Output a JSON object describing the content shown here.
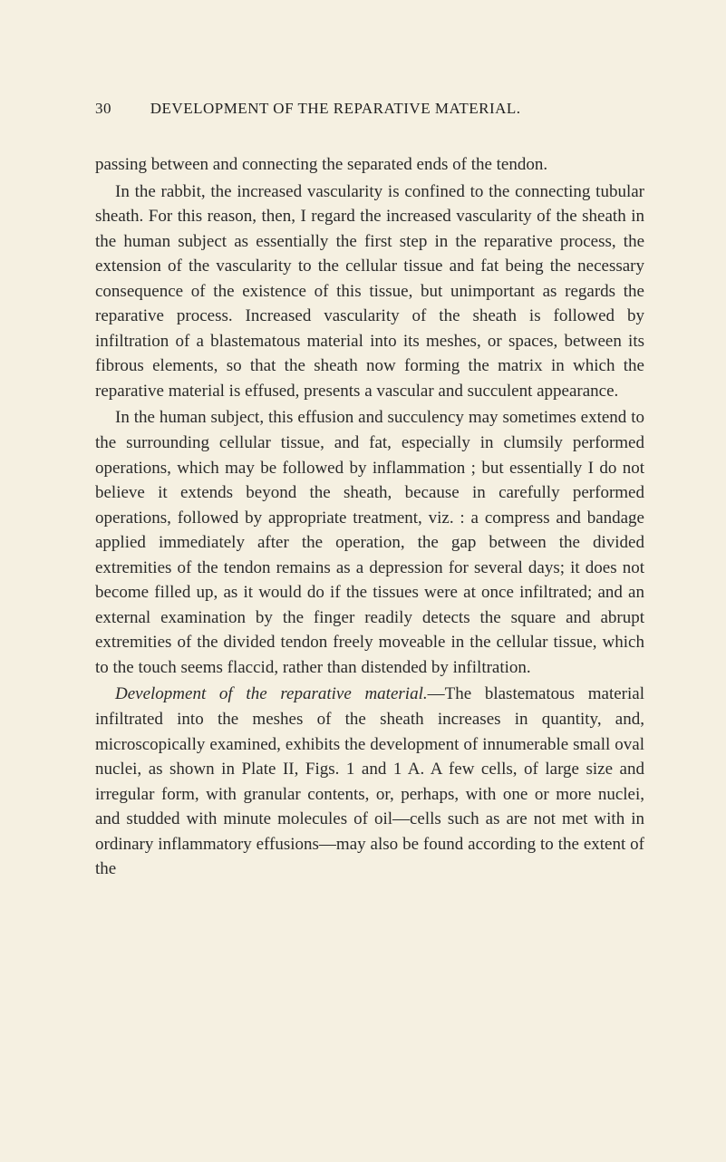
{
  "page": {
    "number": "30",
    "header_title": "DEVELOPMENT OF THE REPARATIVE MATERIAL."
  },
  "paragraphs": {
    "p1": "passing between and connecting the separated ends of the tendon.",
    "p2": "In the rabbit, the increased vascularity is confined to the connecting tubular sheath. For this reason, then, I regard the increased vascularity of the sheath in the human subject as essentially the first step in the reparative process, the extension of the vascularity to the cellular tissue and fat being the necessary consequence of the existence of this tissue, but unimportant as regards the reparative process. Increased vascularity of the sheath is followed by infiltration of a blastematous material into its meshes, or spaces, between its fibrous elements, so that the sheath now forming the matrix in which the reparative material is effused, presents a vascular and succulent appearance.",
    "p3": "In the human subject, this effusion and succulency may sometimes extend to the surrounding cellular tissue, and fat, especially in clumsily performed operations, which may be followed by inflammation ; but essentially I do not believe it extends beyond the sheath, because in carefully performed operations, followed by appropriate treatment, viz. : a compress and bandage applied immediately after the operation, the gap between the divided extremities of the tendon remains as a depression for several days; it does not become filled up, as it would do if the tissues were at once infiltrated; and an external examination by the finger readily detects the square and abrupt extremities of the divided tendon freely moveable in the cellular tissue, which to the touch seems flaccid, rather than distended by infiltration.",
    "p4_italic": "Development of the reparative material.",
    "p4_rest": "—The blastematous material infiltrated into the meshes of the sheath increases in quantity, and, microscopically examined, exhibits the development of innumerable small oval nuclei, as shown in Plate II, Figs. 1 and 1 A. A few cells, of large size and irregular form, with granular contents, or, perhaps, with one or more nuclei, and studded with minute molecules of oil—cells such as are not met with in ordinary inflammatory effusions—may also be found according to the extent of the"
  },
  "colors": {
    "background": "#f5f0e1",
    "text": "#2a2a2a",
    "header_text": "#1f1f1f"
  },
  "typography": {
    "body_font": "Times New Roman",
    "header_fontsize": 17,
    "body_fontsize": 19,
    "line_height": 1.45
  }
}
